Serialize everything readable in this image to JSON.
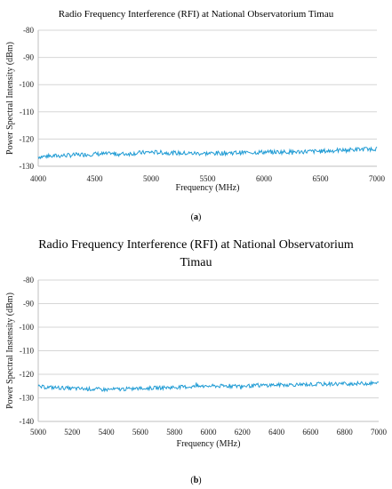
{
  "charts": [
    {
      "id": "a",
      "caption_label": "a",
      "chart_data": {
        "type": "line",
        "title": "Radio Frequency Interference (RFI) at National Observatorium  Timau",
        "xlabel": "Frequency (MHz)",
        "ylabel": "Power Spectral Intensity (dBm)",
        "xlim": [
          4000,
          7000
        ],
        "ylim": [
          -130,
          -80
        ],
        "x_ticks": [
          4000,
          4500,
          5000,
          5500,
          6000,
          6500,
          7000
        ],
        "y_ticks": [
          -80,
          -90,
          -100,
          -110,
          -120,
          -130
        ],
        "grid": "horizontal",
        "series_color": "#1f9bd4",
        "series": [
          {
            "x": [
              4000,
              4250,
              4500,
              4750,
              5000,
              5250,
              5500,
              5750,
              6000,
              6250,
              6500,
              6750,
              7000
            ],
            "y": [
              -126.5,
              -126,
              -125.5,
              -125.5,
              -124.8,
              -125.2,
              -125.3,
              -125,
              -124.8,
              -124.7,
              -124.5,
              -124,
              -123.5
            ]
          }
        ]
      }
    },
    {
      "id": "b",
      "caption_label": "b",
      "chart_data": {
        "type": "line",
        "title_lines": [
          "Radio Frequency Interference (RFI) at National Observatorium",
          "Timau"
        ],
        "xlabel": "Frequency (MHz)",
        "ylabel": "Power Spectral Instensity (dBm)",
        "xlim": [
          5000,
          7000
        ],
        "ylim": [
          -140,
          -80
        ],
        "x_ticks": [
          5000,
          5200,
          5400,
          5600,
          5800,
          6000,
          6200,
          6400,
          6600,
          6800,
          7000
        ],
        "y_ticks": [
          -80,
          -90,
          -100,
          -110,
          -120,
          -130,
          -140
        ],
        "grid": "horizontal",
        "series_color": "#1f9bd4",
        "series": [
          {
            "x": [
              5000,
              5200,
              5400,
              5600,
              5800,
              6000,
              6200,
              6400,
              6600,
              6800,
              7000
            ],
            "y": [
              -125.3,
              -126,
              -126.5,
              -126,
              -125.5,
              -125,
              -125,
              -124.5,
              -124.3,
              -124,
              -123.8
            ]
          }
        ]
      }
    }
  ]
}
